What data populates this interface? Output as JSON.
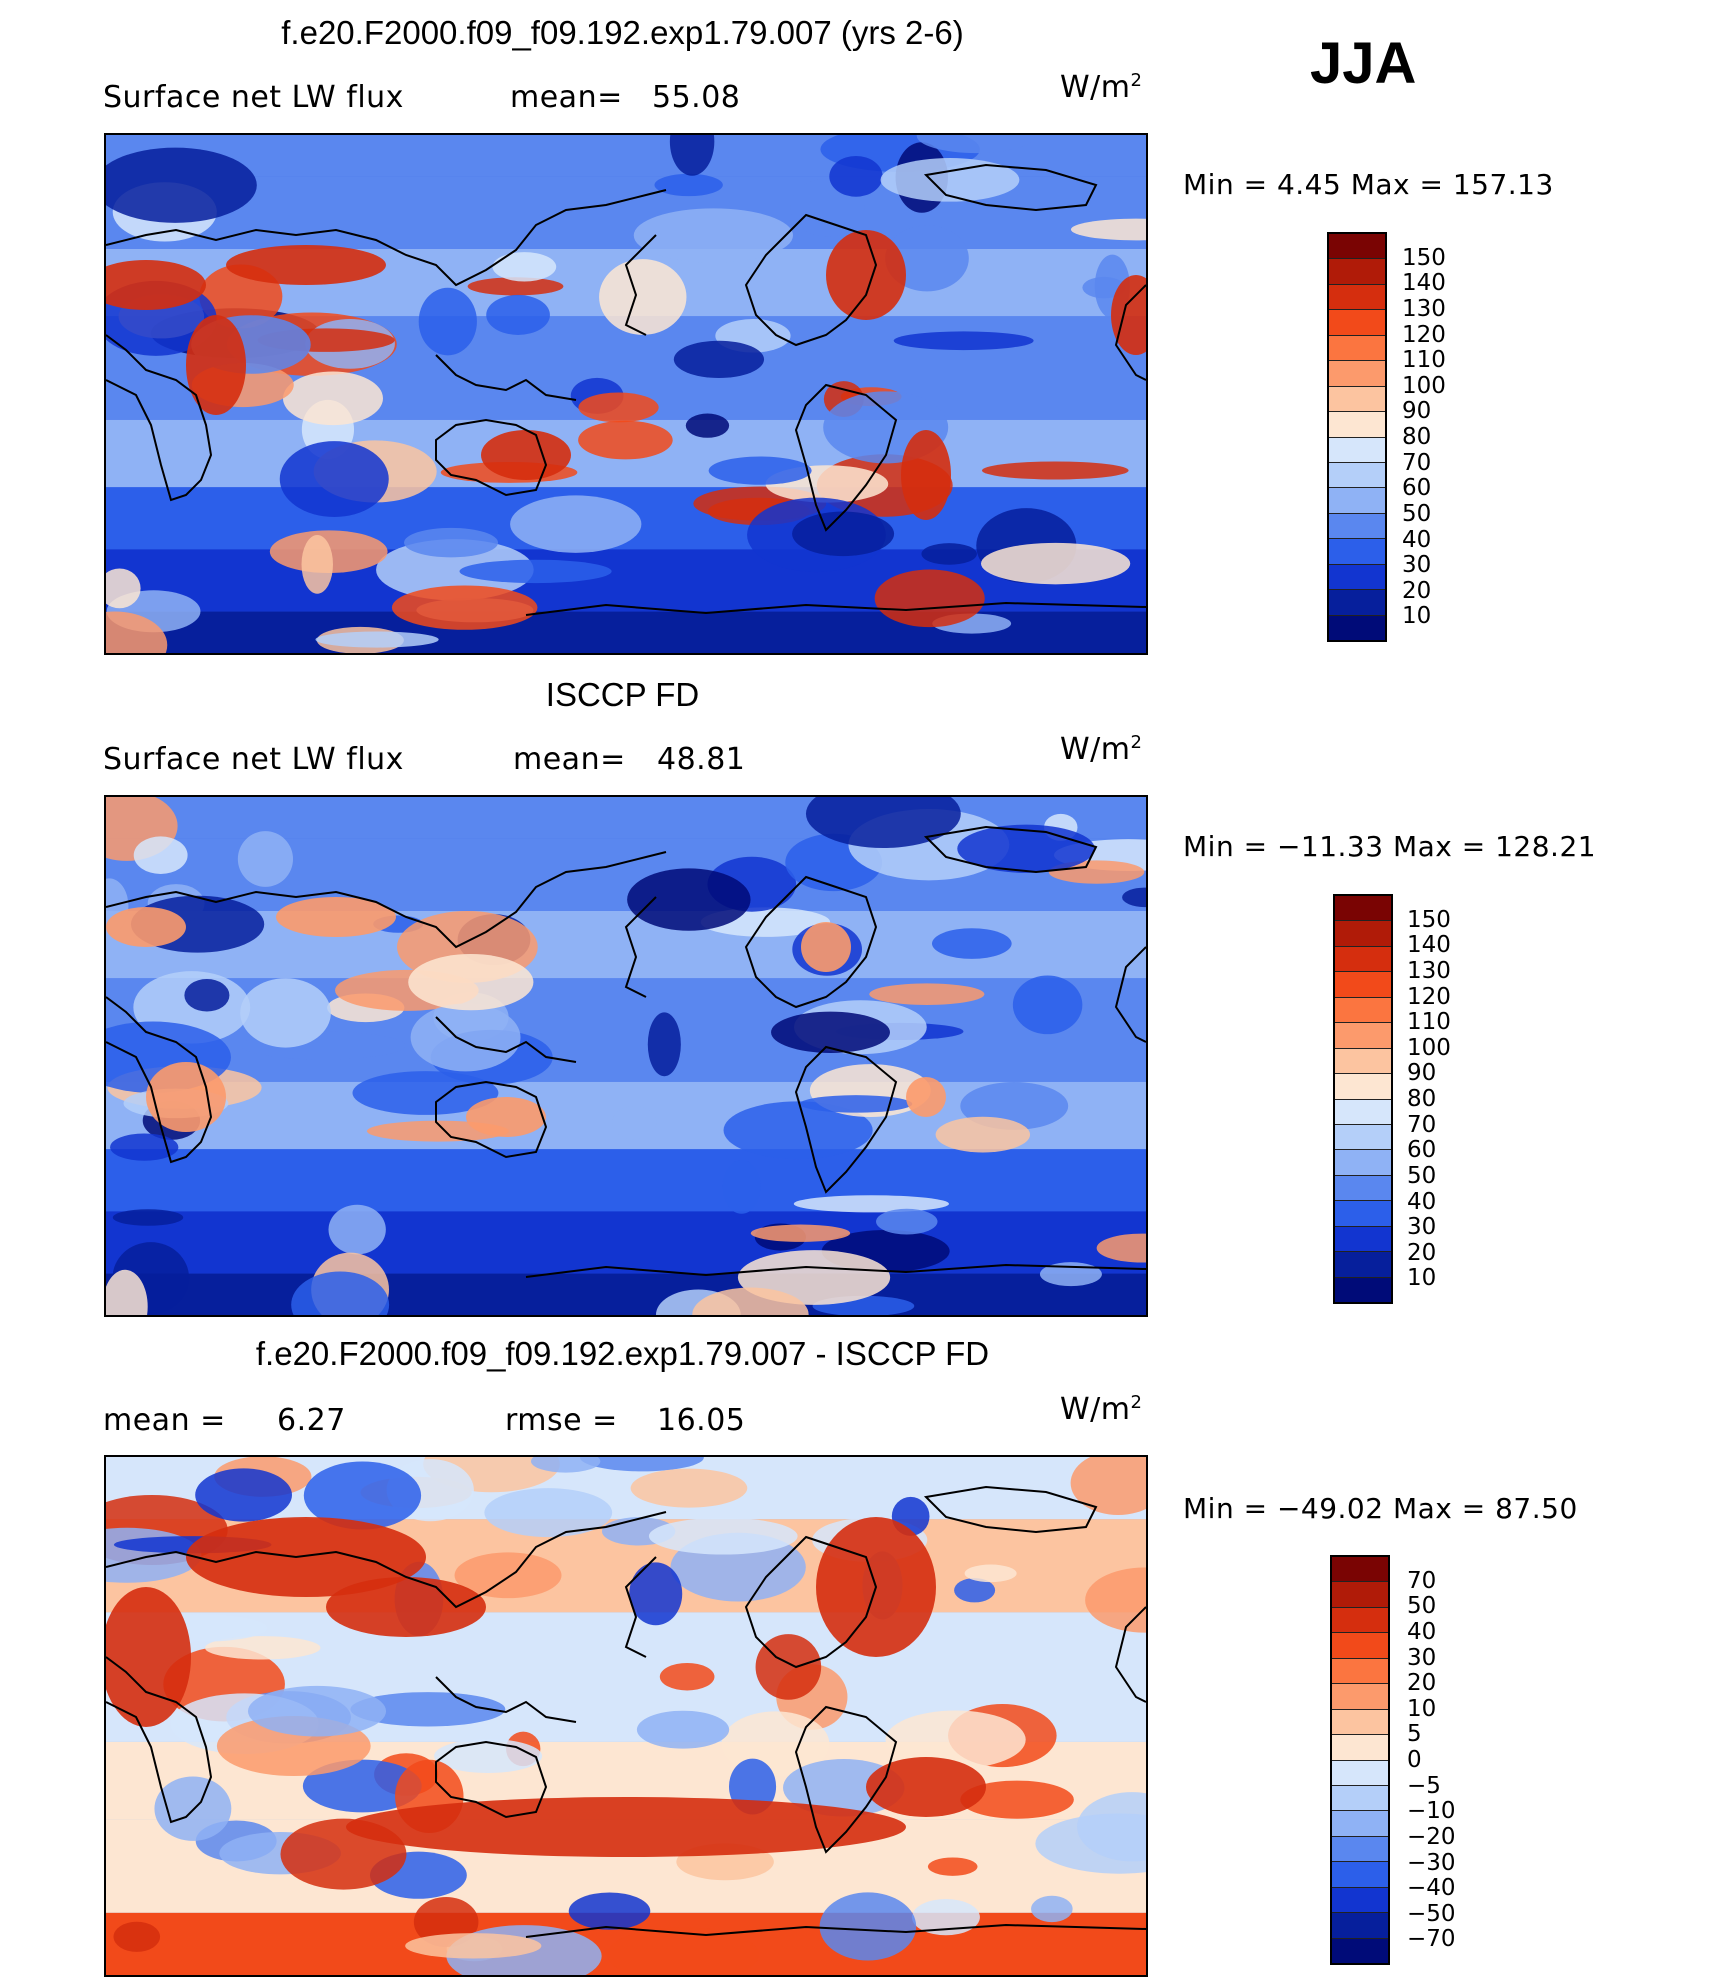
{
  "header": {
    "season": "JJA"
  },
  "panels": [
    {
      "title": "f.e20.F2000.f09_f09.192.exp1.79.007 (yrs 2-6)",
      "left_label": "Surface net LW flux",
      "mid_label": "mean=",
      "mid_value": "55.08",
      "units_base": "W/m",
      "units_exp": "2",
      "minmax": "Min  =    4.45  Max  =  157.13",
      "colorbar_ticks": [
        "150",
        "140",
        "130",
        "120",
        "110",
        "100",
        "90",
        "80",
        "70",
        "60",
        "50",
        "40",
        "30",
        "20",
        "10"
      ],
      "colorbar_colors": [
        "#7a0403",
        "#b01b08",
        "#d52e0e",
        "#f24a1a",
        "#fb7540",
        "#fc9a6c",
        "#fcc4a0",
        "#fde6d2",
        "#d6e6fb",
        "#b4cff9",
        "#8fb2f5",
        "#5a87ef",
        "#2c5fea",
        "#1235d0",
        "#061f9c",
        "#000b78"
      ],
      "field_palette": [
        "#000b78",
        "#061f9c",
        "#1235d0",
        "#2c5fea",
        "#5a87ef",
        "#8fb2f5",
        "#b4cff9",
        "#d6e6fb",
        "#fde6d2",
        "#fcc4a0",
        "#fc9a6c",
        "#f24a1a",
        "#d52e0e"
      ]
    },
    {
      "title": "ISCCP FD",
      "left_label": "Surface net LW flux",
      "mid_label": "mean=",
      "mid_value": "48.81",
      "units_base": "W/m",
      "units_exp": "2",
      "minmax": "Min  = −11.33  Max  =  128.21",
      "colorbar_ticks": [
        "150",
        "140",
        "130",
        "120",
        "110",
        "100",
        "90",
        "80",
        "70",
        "60",
        "50",
        "40",
        "30",
        "20",
        "10"
      ],
      "colorbar_colors": [
        "#7a0403",
        "#b01b08",
        "#d52e0e",
        "#f24a1a",
        "#fb7540",
        "#fc9a6c",
        "#fcc4a0",
        "#fde6d2",
        "#d6e6fb",
        "#b4cff9",
        "#8fb2f5",
        "#5a87ef",
        "#2c5fea",
        "#1235d0",
        "#061f9c",
        "#000b78"
      ],
      "field_palette": [
        "#000b78",
        "#061f9c",
        "#1235d0",
        "#2c5fea",
        "#5a87ef",
        "#8fb2f5",
        "#b4cff9",
        "#d6e6fb",
        "#fde6d2",
        "#fcc4a0",
        "#fc9a6c"
      ]
    },
    {
      "title": "f.e20.F2000.f09_f09.192.exp1.79.007 - ISCCP FD",
      "left_label": "mean  =",
      "left_value": "6.27",
      "mid_label": "rmse  =",
      "mid_value": "16.05",
      "units_base": "W/m",
      "units_exp": "2",
      "minmax": "Min  = −49.02  Max  =   87.50",
      "colorbar_ticks": [
        "70",
        "50",
        "40",
        "30",
        "20",
        "10",
        "5",
        "0",
        "−5",
        "−10",
        "−20",
        "−30",
        "−40",
        "−50",
        "−70"
      ],
      "colorbar_colors": [
        "#7a0403",
        "#b01b08",
        "#d52e0e",
        "#f24a1a",
        "#fb7540",
        "#fc9a6c",
        "#fcc4a0",
        "#fde6d2",
        "#d6e6fb",
        "#b4cff9",
        "#8fb2f5",
        "#5a87ef",
        "#2c5fea",
        "#1235d0",
        "#061f9c",
        "#000b78"
      ],
      "field_palette": [
        "#1235d0",
        "#2c5fea",
        "#5a87ef",
        "#8fb2f5",
        "#b4cff9",
        "#d6e6fb",
        "#fde6d2",
        "#fcc4a0",
        "#fc9a6c",
        "#f24a1a",
        "#d52e0e"
      ]
    }
  ]
}
